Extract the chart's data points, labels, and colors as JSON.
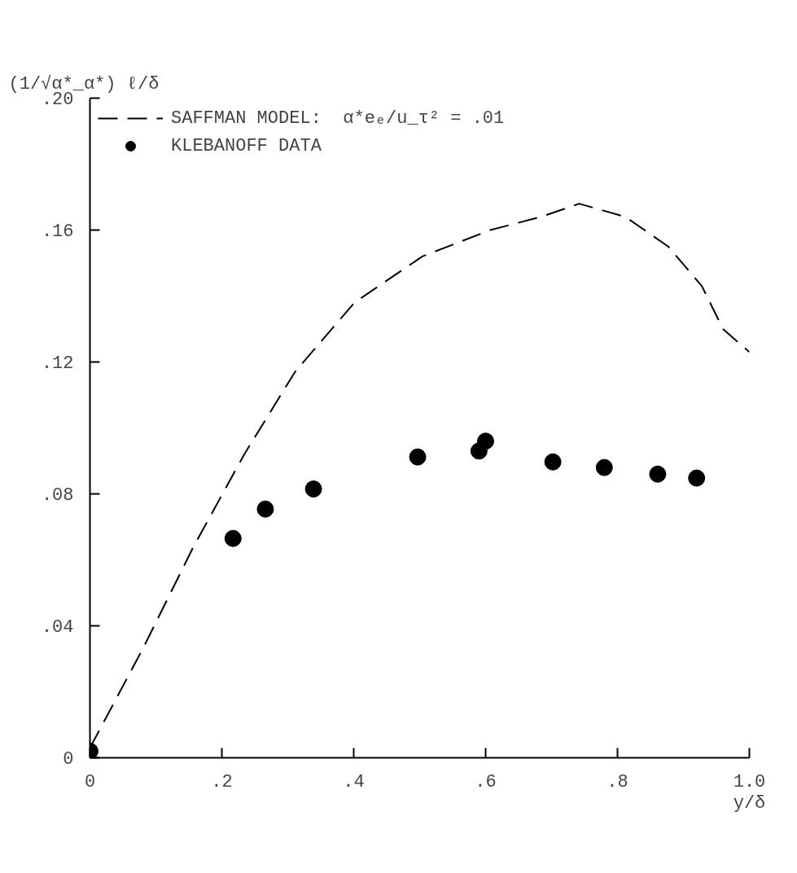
{
  "chart_data": {
    "type": "line",
    "xlabel": "y/δ",
    "ylabel": "(1/√α*_α*) ℓ/δ",
    "xlim": [
      0,
      1.0
    ],
    "ylim": [
      0,
      0.2
    ],
    "xticks": [
      {
        "value": 0,
        "label": "0"
      },
      {
        "value": 0.2,
        "label": ".2"
      },
      {
        "value": 0.4,
        "label": ".4"
      },
      {
        "value": 0.6,
        "label": ".6"
      },
      {
        "value": 0.8,
        "label": ".8"
      },
      {
        "value": 1.0,
        "label": "1.0"
      }
    ],
    "yticks": [
      {
        "value": 0,
        "label": "0"
      },
      {
        "value": 0.04,
        "label": ".04"
      },
      {
        "value": 0.08,
        "label": ".08"
      },
      {
        "value": 0.12,
        "label": ".12"
      },
      {
        "value": 0.16,
        "label": ".16"
      },
      {
        "value": 0.2,
        "label": ".20"
      }
    ],
    "grid": false,
    "legend": "top left",
    "series": [
      {
        "name": "SAFFMAN MODEL:  α*eₑ/u_τ² = .01",
        "line_style": "dashed",
        "color": "#000000",
        "x": [
          0,
          0.08,
          0.157,
          0.234,
          0.311,
          0.401,
          0.504,
          0.607,
          0.684,
          0.742,
          0.812,
          0.877,
          0.928,
          0.96,
          1.0
        ],
        "values": [
          0.003,
          0.033,
          0.064,
          0.092,
          0.117,
          0.138,
          0.152,
          0.16,
          0.164,
          0.168,
          0.164,
          0.155,
          0.143,
          0.13,
          0.123
        ]
      },
      {
        "name": "KLEBANOFF DATA",
        "type": "scatter",
        "marker": "circle",
        "color": "#000000",
        "x": [
          0,
          0.217,
          0.266,
          0.339,
          0.497,
          0.59,
          0.6,
          0.702,
          0.78,
          0.861,
          0.92
        ],
        "values": [
          0.002,
          0.0665,
          0.0754,
          0.0815,
          0.0912,
          0.093,
          0.096,
          0.0897,
          0.088,
          0.086,
          0.0848
        ]
      }
    ]
  }
}
